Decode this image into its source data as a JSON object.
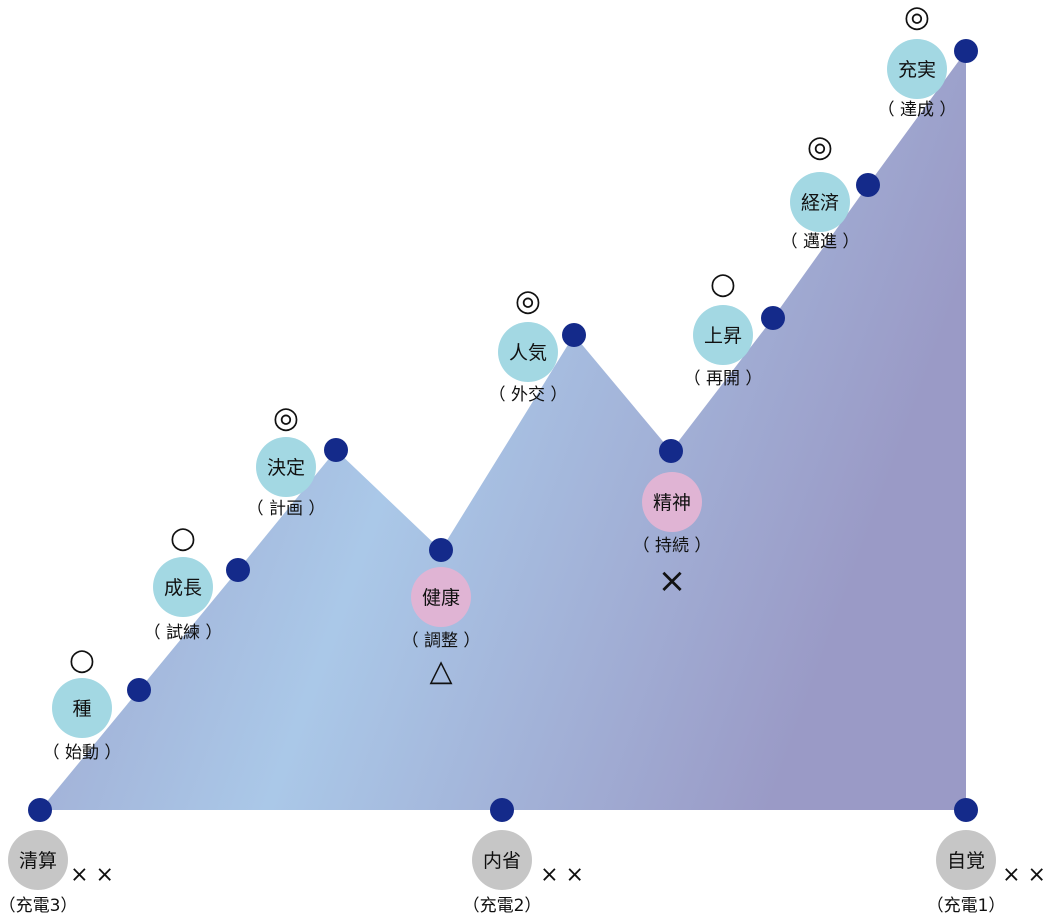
{
  "colors": {
    "stage_node": "#a3d8e3",
    "low_node": "#e0b4d4",
    "base_node": "#c6c6c6",
    "vertex_dot": "#142a8a",
    "fill_edge": "#9a9ac6",
    "fill_center": "#aac8e8"
  },
  "nodes": [
    {
      "label": "種",
      "sub": "（ 始動 ）",
      "mark": "○",
      "type": "stage"
    },
    {
      "label": "成長",
      "sub": "（ 試練 ）",
      "mark": "○",
      "type": "stage"
    },
    {
      "label": "決定",
      "sub": "（ 計画 ）",
      "mark": "◎",
      "type": "stage"
    },
    {
      "label": "健康",
      "sub": "（ 調整 ）",
      "mark": "△",
      "type": "low"
    },
    {
      "label": "人気",
      "sub": "（ 外交 ）",
      "mark": "◎",
      "type": "stage"
    },
    {
      "label": "精神",
      "sub": "（ 持続 ）",
      "mark": "×",
      "type": "low"
    },
    {
      "label": "上昇",
      "sub": "（ 再開 ）",
      "mark": "○",
      "type": "stage"
    },
    {
      "label": "経済",
      "sub": "（ 邁進 ）",
      "mark": "◎",
      "type": "stage"
    },
    {
      "label": "充実",
      "sub": "（ 達成 ）",
      "mark": "◎",
      "type": "stage"
    },
    {
      "label": "清算",
      "sub": "（充電3）",
      "mark": "× ×",
      "type": "base"
    },
    {
      "label": "内省",
      "sub": "（充電2）",
      "mark": "× ×",
      "type": "base"
    },
    {
      "label": "自覚",
      "sub": "（充電1）",
      "mark": "× ×",
      "type": "base"
    }
  ]
}
